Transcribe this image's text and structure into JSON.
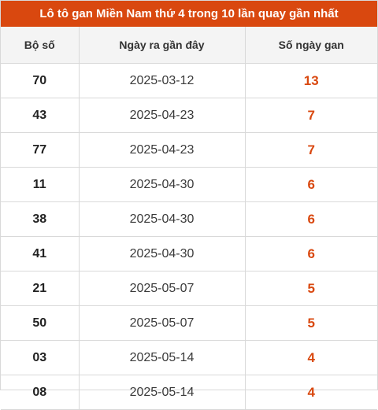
{
  "title": "Lô tô gan Miền Nam thứ 4 trong 10 lần quay gần nhất",
  "columns": [
    "Bộ số",
    "Ngày ra gần đây",
    "Số ngày gan"
  ],
  "rows": [
    {
      "number": "70",
      "date": "2025-03-12",
      "days": "13"
    },
    {
      "number": "43",
      "date": "2025-04-23",
      "days": "7"
    },
    {
      "number": "77",
      "date": "2025-04-23",
      "days": "7"
    },
    {
      "number": "11",
      "date": "2025-04-30",
      "days": "6"
    },
    {
      "number": "38",
      "date": "2025-04-30",
      "days": "6"
    },
    {
      "number": "41",
      "date": "2025-04-30",
      "days": "6"
    },
    {
      "number": "21",
      "date": "2025-05-07",
      "days": "5"
    },
    {
      "number": "50",
      "date": "2025-05-07",
      "days": "5"
    },
    {
      "number": "03",
      "date": "2025-05-14",
      "days": "4"
    },
    {
      "number": "08",
      "date": "2025-05-14",
      "days": "4"
    }
  ],
  "colors": {
    "accent": "#d9480f",
    "header_bg": "#f4f4f4",
    "border": "#d9d9d9"
  }
}
